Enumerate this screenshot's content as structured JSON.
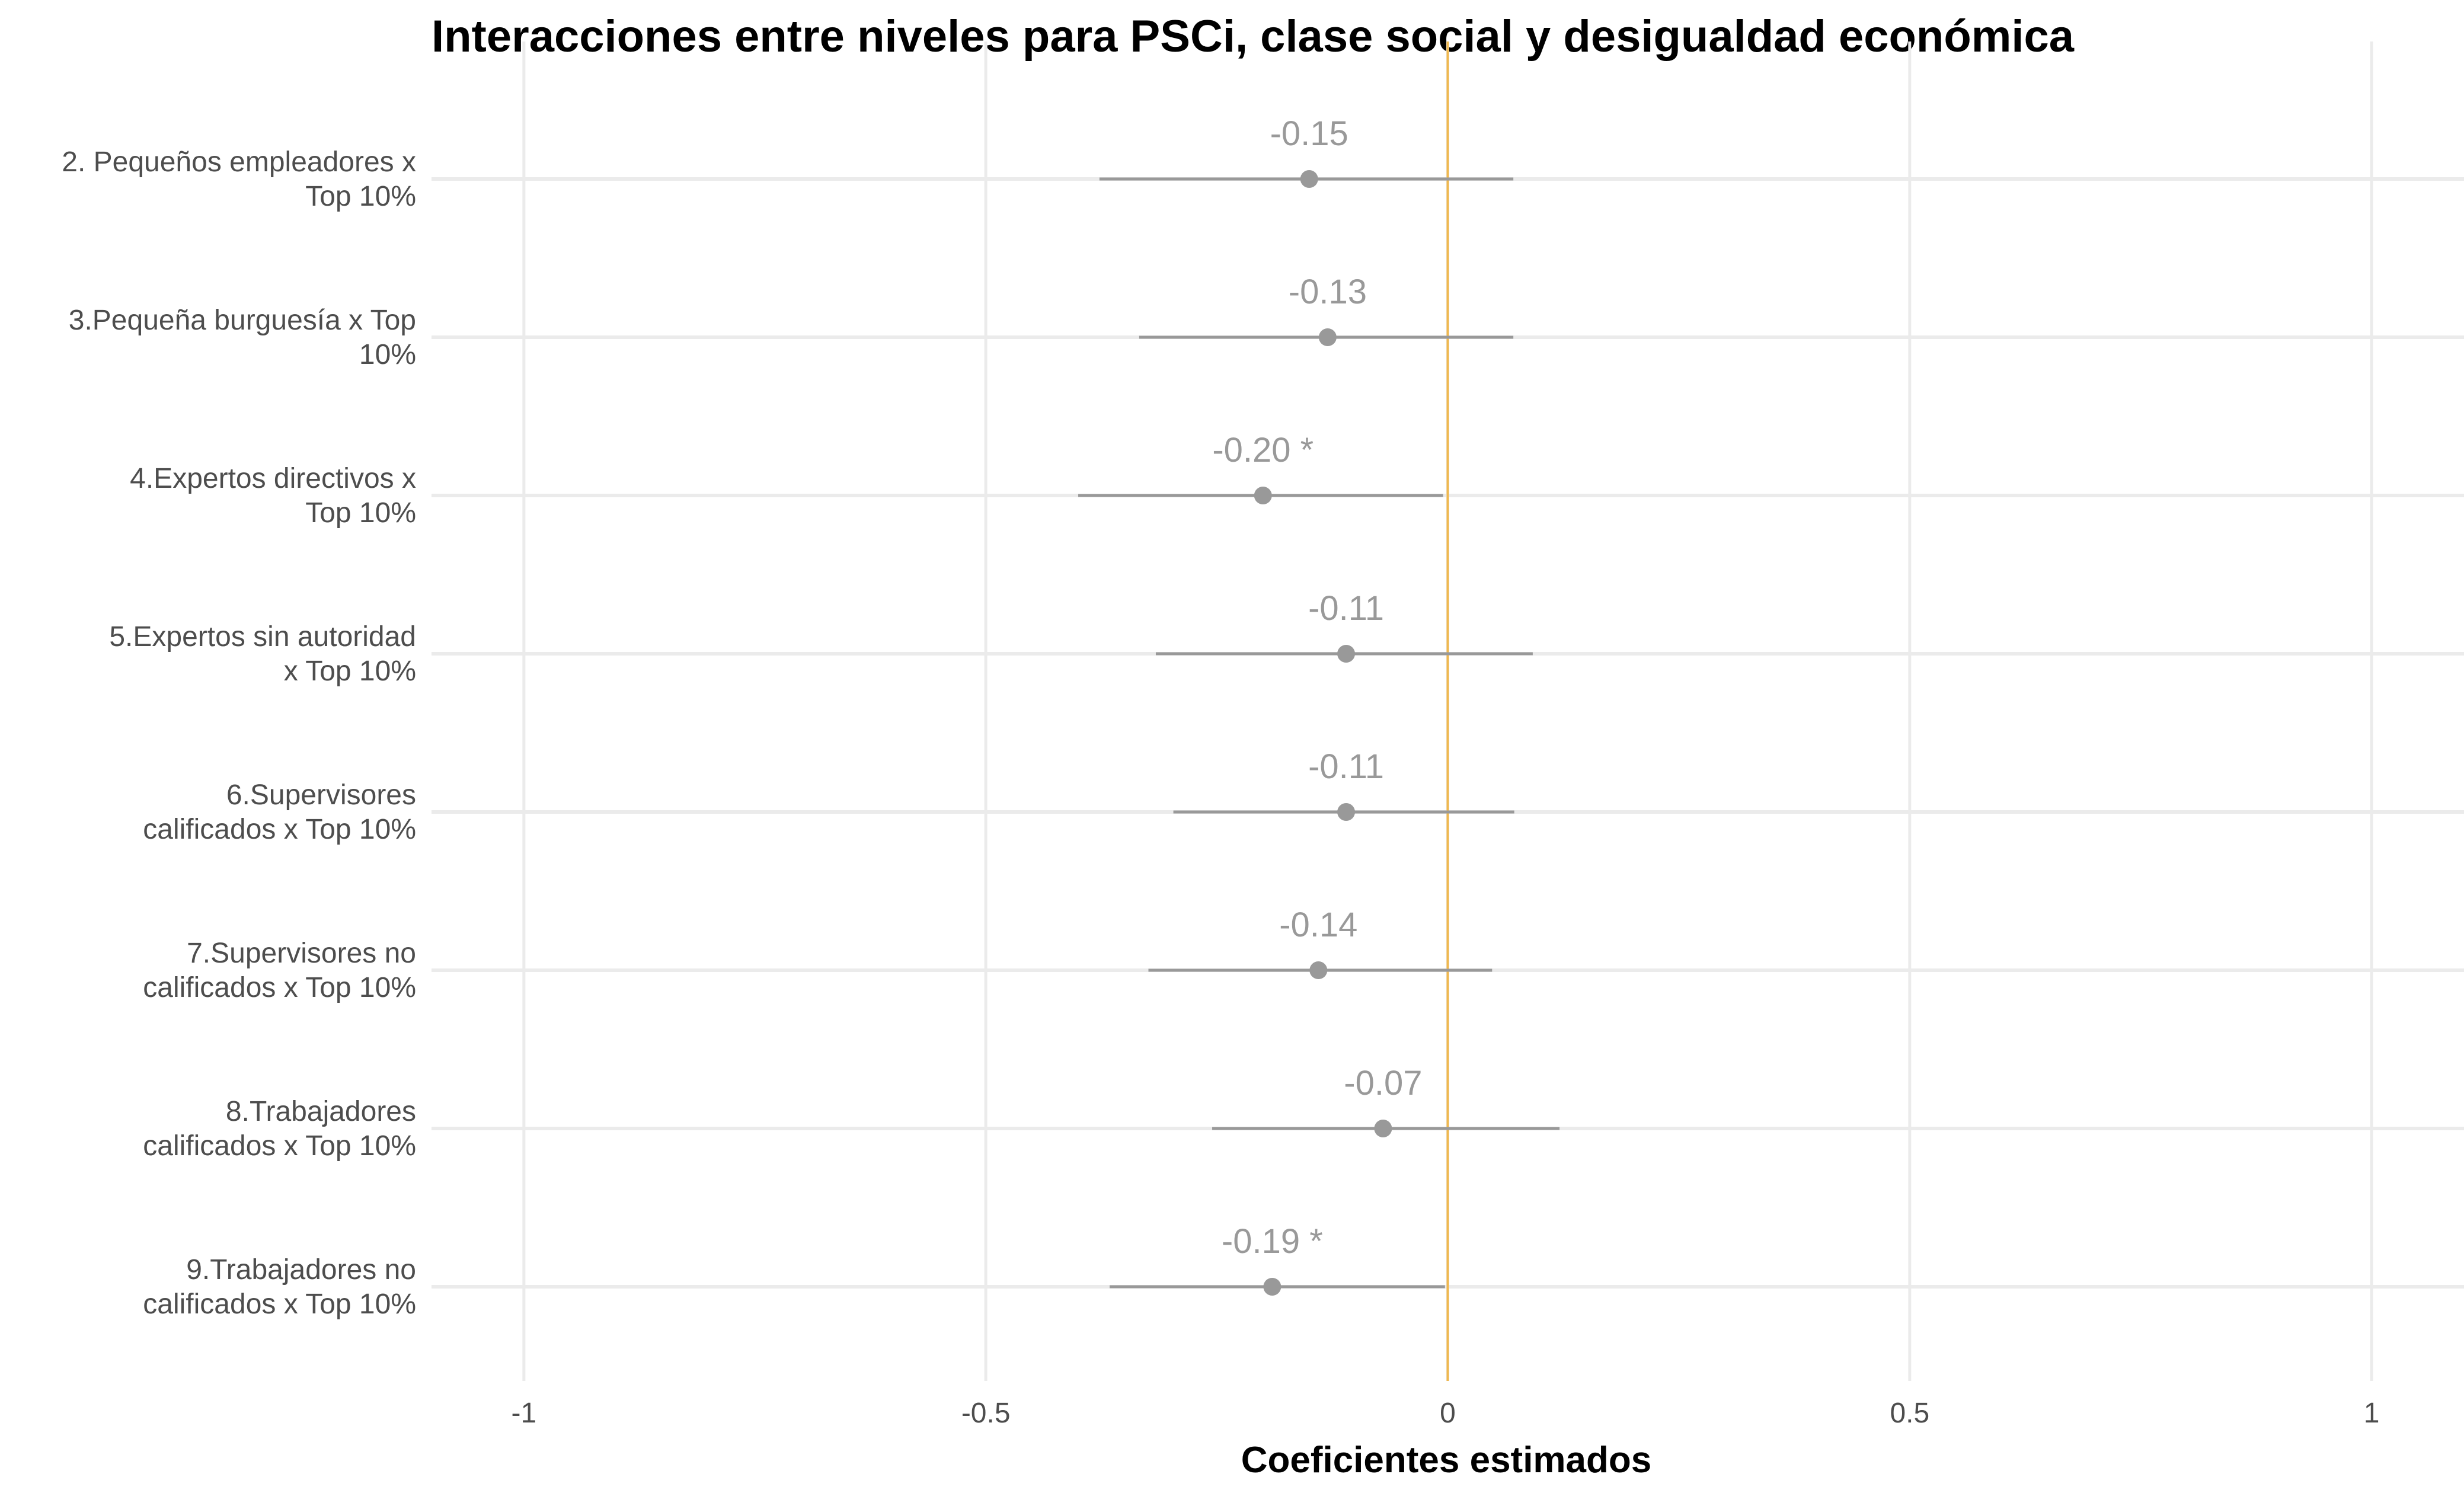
{
  "chart_data": {
    "type": "coefficient-plot",
    "title": "Interacciones entre niveles para PSCi, clase social y desigualdad económica",
    "xlabel": "Coeficientes estimados",
    "ylabel": "",
    "xlim": [
      -1.1,
      1.1
    ],
    "x_ticks": [
      -1,
      -0.5,
      0,
      0.5,
      1
    ],
    "x_tick_labels": [
      "-1",
      "-0.5",
      "0",
      "0.5",
      "1"
    ],
    "reference_line": {
      "x": 0,
      "color": "#F0B84F"
    },
    "grid": true,
    "colors": {
      "point": "#999999",
      "interval": "#999999",
      "label": "#999999",
      "grid": "#EBEBEB"
    },
    "categories": [
      {
        "lines": [
          "2. Pequeños empleadores x",
          "Top 10%"
        ],
        "estimate": -0.15,
        "low": -0.377,
        "high": 0.071,
        "label": "-0.15"
      },
      {
        "lines": [
          "3.Pequeña burguesía x Top",
          "10%"
        ],
        "estimate": -0.13,
        "low": -0.334,
        "high": 0.071,
        "label": "-0.13"
      },
      {
        "lines": [
          "4.Expertos directivos x",
          "Top 10%"
        ],
        "estimate": -0.2,
        "low": -0.4,
        "high": -0.005,
        "label": "-0.20 *"
      },
      {
        "lines": [
          "5.Expertos sin autoridad",
          "x Top 10%"
        ],
        "estimate": -0.11,
        "low": -0.316,
        "high": 0.092,
        "label": "-0.11"
      },
      {
        "lines": [
          "6.Supervisores",
          "calificados x Top 10%"
        ],
        "estimate": -0.11,
        "low": -0.297,
        "high": 0.072,
        "label": "-0.11"
      },
      {
        "lines": [
          "7.Supervisores no",
          "calificados x Top 10%"
        ],
        "estimate": -0.14,
        "low": -0.324,
        "high": 0.048,
        "label": "-0.14"
      },
      {
        "lines": [
          "8.Trabajadores",
          "calificados x Top 10%"
        ],
        "estimate": -0.07,
        "low": -0.255,
        "high": 0.121,
        "label": "-0.07"
      },
      {
        "lines": [
          "9.Trabajadores no",
          "calificados x Top 10%"
        ],
        "estimate": -0.19,
        "low": -0.366,
        "high": -0.003,
        "label": "-0.19 *"
      }
    ]
  }
}
